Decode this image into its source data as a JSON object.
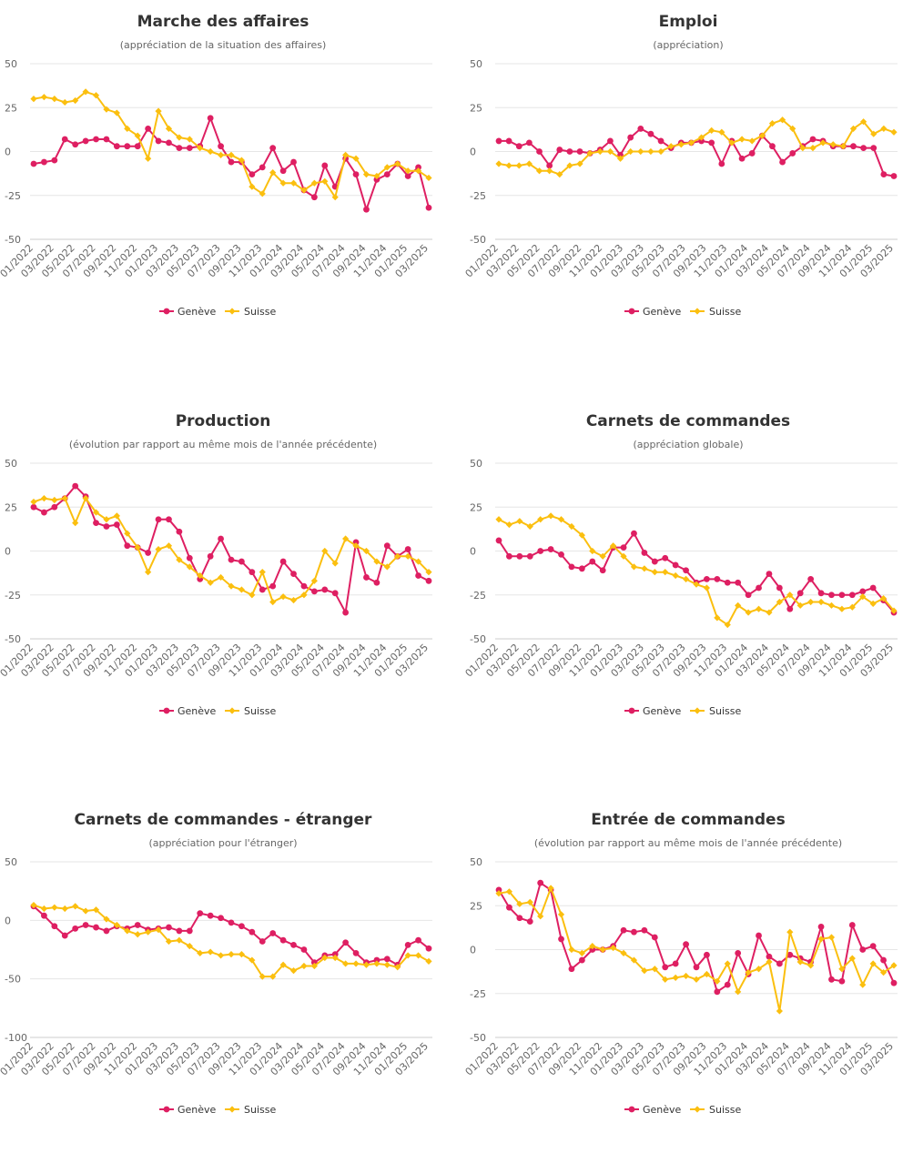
{
  "colors": {
    "geneve": "#de1f62",
    "suisse": "#fbbf0f"
  },
  "legend": {
    "geneve": "Genève",
    "suisse": "Suisse"
  },
  "x_labels": [
    "01/2022",
    "03/2022",
    "05/2022",
    "07/2022",
    "09/2022",
    "11/2022",
    "01/2023",
    "03/2023",
    "05/2023",
    "07/2023",
    "09/2023",
    "11/2023",
    "01/2024",
    "03/2024",
    "05/2024",
    "07/2024",
    "09/2024",
    "11/2024",
    "01/2025",
    "03/2025"
  ],
  "chart_data": [
    {
      "type": "line",
      "title": "Marche des affaires",
      "subtitle": "(appréciation de la situation des affaires)",
      "ylim": [
        -50,
        50
      ],
      "yticks": [
        50,
        25,
        0,
        -25,
        -50
      ],
      "grid": true,
      "legend_position": "bottom",
      "series": [
        {
          "name": "Genève",
          "values": [
            -7,
            -6,
            -5,
            7,
            4,
            6,
            7,
            7,
            3,
            3,
            3,
            13,
            6,
            5,
            2,
            2,
            3,
            19,
            3,
            -6,
            -6,
            -13,
            -9,
            2,
            -11,
            -6,
            -22,
            -26,
            -8,
            -20,
            -4,
            -13,
            -33,
            -16,
            -13,
            -7,
            -14,
            -9,
            -32
          ]
        },
        {
          "name": "Suisse",
          "values": [
            30,
            31,
            30,
            28,
            29,
            34,
            32,
            24,
            22,
            13,
            9,
            -4,
            23,
            13,
            8,
            7,
            2,
            0,
            -2,
            -2,
            -5,
            -20,
            -24,
            -12,
            -18,
            -18,
            -22,
            -18,
            -17,
            -26,
            -2,
            -4,
            -13,
            -14,
            -9,
            -7,
            -11,
            -11,
            -15
          ]
        }
      ]
    },
    {
      "type": "line",
      "title": "Emploi",
      "subtitle": "(appréciation)",
      "ylim": [
        -50,
        50
      ],
      "yticks": [
        50,
        25,
        0,
        -25,
        -50
      ],
      "grid": true,
      "legend_position": "bottom",
      "series": [
        {
          "name": "Genève",
          "values": [
            6,
            6,
            3,
            5,
            0,
            -8,
            1,
            0,
            0,
            -1,
            1,
            6,
            -2,
            8,
            13,
            10,
            6,
            2,
            5,
            5,
            6,
            5,
            -7,
            6,
            -4,
            -1,
            9,
            3,
            -6,
            -1,
            3,
            7,
            6,
            3,
            3,
            3,
            2,
            2,
            -13,
            -14
          ]
        },
        {
          "name": "Suisse",
          "values": [
            -7,
            -8,
            -8,
            -7,
            -11,
            -11,
            -13,
            -8,
            -7,
            -1,
            0,
            0,
            -4,
            0,
            0,
            0,
            0,
            3,
            4,
            5,
            8,
            12,
            11,
            5,
            7,
            6,
            9,
            16,
            18,
            13,
            2,
            2,
            5,
            4,
            3,
            13,
            17,
            10,
            13,
            11
          ]
        }
      ]
    },
    {
      "type": "line",
      "title": "Production",
      "subtitle": "(évolution par rapport au même mois de l'année précédente)",
      "ylim": [
        -50,
        50
      ],
      "yticks": [
        50,
        25,
        0,
        -25,
        -50
      ],
      "grid": true,
      "legend_position": "bottom",
      "series": [
        {
          "name": "Genève",
          "values": [
            25,
            22,
            25,
            30,
            37,
            31,
            16,
            14,
            15,
            3,
            2,
            -1,
            18,
            18,
            11,
            -4,
            -16,
            -3,
            7,
            -5,
            -6,
            -12,
            -22,
            -20,
            -6,
            -13,
            -20,
            -23,
            -22,
            -24,
            -35,
            5,
            -15,
            -18,
            3,
            -3,
            1,
            -14,
            -17
          ]
        },
        {
          "name": "Suisse",
          "values": [
            28,
            30,
            29,
            30,
            16,
            30,
            22,
            18,
            20,
            10,
            2,
            -12,
            1,
            3,
            -5,
            -9,
            -14,
            -18,
            -15,
            -20,
            -22,
            -25,
            -12,
            -29,
            -26,
            -28,
            -25,
            -17,
            0,
            -7,
            7,
            3,
            0,
            -6,
            -9,
            -3,
            -3,
            -6,
            -12
          ]
        }
      ]
    },
    {
      "type": "line",
      "title": "Carnets de commandes",
      "subtitle": "(appréciation globale)",
      "ylim": [
        -50,
        50
      ],
      "yticks": [
        50,
        25,
        0,
        -25,
        -50
      ],
      "grid": true,
      "legend_position": "bottom",
      "series": [
        {
          "name": "Genève",
          "values": [
            6,
            -3,
            -3,
            -3,
            0,
            1,
            -2,
            -9,
            -10,
            -6,
            -11,
            2,
            2,
            10,
            -1,
            -6,
            -4,
            -8,
            -11,
            -18,
            -16,
            -16,
            -18,
            -18,
            -25,
            -21,
            -13,
            -21,
            -33,
            -24,
            -16,
            -24,
            -25,
            -25,
            -25,
            -23,
            -21,
            -28,
            -35
          ]
        },
        {
          "name": "Suisse",
          "values": [
            18,
            15,
            17,
            14,
            18,
            20,
            18,
            14,
            9,
            0,
            -3,
            3,
            -3,
            -9,
            -10,
            -12,
            -12,
            -14,
            -16,
            -19,
            -21,
            -38,
            -42,
            -31,
            -35,
            -33,
            -35,
            -29,
            -25,
            -31,
            -29,
            -29,
            -31,
            -33,
            -32,
            -26,
            -30,
            -27,
            -34
          ]
        }
      ]
    },
    {
      "type": "line",
      "title": "Carnets de commandes - étranger",
      "subtitle": "(appréciation pour l'étranger)",
      "ylim": [
        -100,
        50
      ],
      "yticks": [
        50,
        0,
        -50,
        -100
      ],
      "grid": true,
      "legend_position": "bottom",
      "series": [
        {
          "name": "Genève",
          "values": [
            12,
            4,
            -5,
            -13,
            -7,
            -4,
            -6,
            -9,
            -5,
            -7,
            -4,
            -8,
            -7,
            -6,
            -9,
            -9,
            6,
            4,
            2,
            -2,
            -5,
            -10,
            -18,
            -11,
            -17,
            -21,
            -25,
            -36,
            -30,
            -29,
            -19,
            -28,
            -36,
            -34,
            -33,
            -38,
            -21,
            -17,
            -24
          ]
        },
        {
          "name": "Suisse",
          "values": [
            13,
            10,
            11,
            10,
            12,
            8,
            9,
            1,
            -4,
            -9,
            -12,
            -10,
            -8,
            -18,
            -17,
            -22,
            -28,
            -27,
            -30,
            -29,
            -29,
            -34,
            -48,
            -48,
            -38,
            -43,
            -39,
            -39,
            -32,
            -32,
            -37,
            -37,
            -38,
            -37,
            -38,
            -40,
            -30,
            -30,
            -35
          ]
        }
      ]
    },
    {
      "type": "line",
      "title": "Entrée de commandes",
      "subtitle": "(évolution par rapport au même mois de l'année précédente)",
      "ylim": [
        -50,
        50
      ],
      "yticks": [
        50,
        25,
        0,
        -25,
        -50
      ],
      "grid": true,
      "legend_position": "bottom",
      "series": [
        {
          "name": "Genève",
          "values": [
            34,
            24,
            18,
            16,
            38,
            34,
            6,
            -11,
            -6,
            0,
            0,
            2,
            11,
            10,
            11,
            7,
            -10,
            -8,
            3,
            -10,
            -3,
            -24,
            -20,
            -2,
            -14,
            8,
            -4,
            -8,
            -3,
            -5,
            -7,
            13,
            -17,
            -18,
            14,
            0,
            2,
            -6,
            -19
          ]
        },
        {
          "name": "Suisse",
          "values": [
            32,
            33,
            26,
            27,
            19,
            35,
            20,
            0,
            -2,
            2,
            0,
            1,
            -2,
            -6,
            -12,
            -11,
            -17,
            -16,
            -15,
            -17,
            -14,
            -18,
            -8,
            -24,
            -13,
            -11,
            -7,
            -35,
            10,
            -7,
            -9,
            6,
            7,
            -11,
            -5,
            -20,
            -8,
            -13,
            -9
          ]
        }
      ]
    }
  ]
}
